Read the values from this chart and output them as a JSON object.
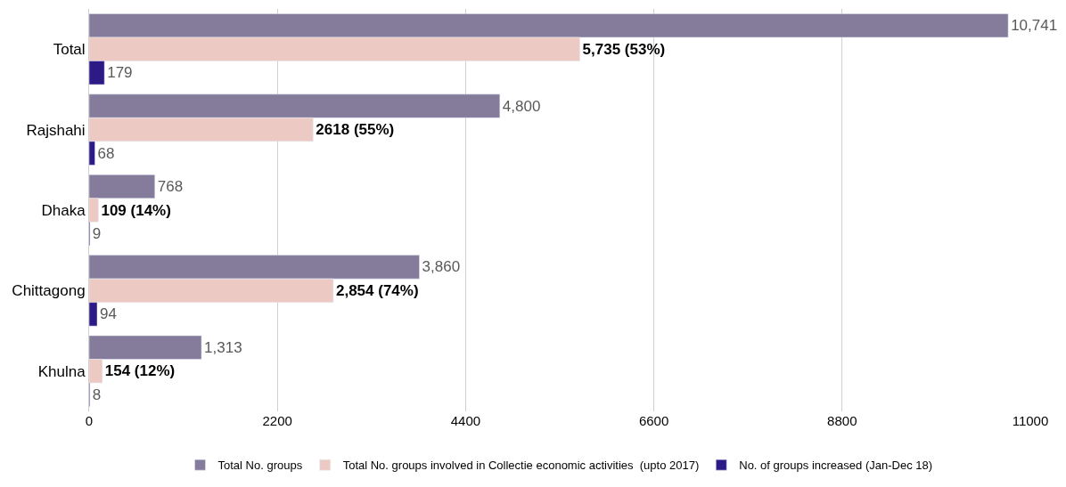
{
  "chart_data": {
    "type": "bar",
    "orientation": "horizontal",
    "categories": [
      "Total",
      "Rajshahi",
      "Dhaka",
      "Chittagong",
      "Khulna"
    ],
    "series": [
      {
        "name": "Total No. groups",
        "color": "#857b9b",
        "values": [
          10741,
          4800,
          768,
          3860,
          1313
        ],
        "value_labels": [
          "10,741",
          "4,800",
          "768",
          "3,860",
          "1,313"
        ]
      },
      {
        "name": "Total No. groups involved in Collectie economic activities  (upto 2017)",
        "color": "#ecc9c2",
        "values": [
          5735,
          2618,
          109,
          2854,
          154
        ],
        "value_labels": [
          "5,735 (53%)",
          "2618 (55%)",
          "109 (14%)",
          "2,854 (74%)",
          "154 (12%)"
        ]
      },
      {
        "name": "No. of groups increased (Jan-Dec 18)",
        "color": "#2e1a87",
        "values": [
          179,
          68,
          9,
          94,
          8
        ],
        "value_labels": [
          "179",
          "68",
          "9",
          "94",
          "8"
        ]
      }
    ],
    "xlim": [
      0,
      11000
    ],
    "xticks": [
      0,
      2200,
      4400,
      6600,
      8800,
      11000
    ],
    "grid": "x",
    "legend": "bottom"
  }
}
